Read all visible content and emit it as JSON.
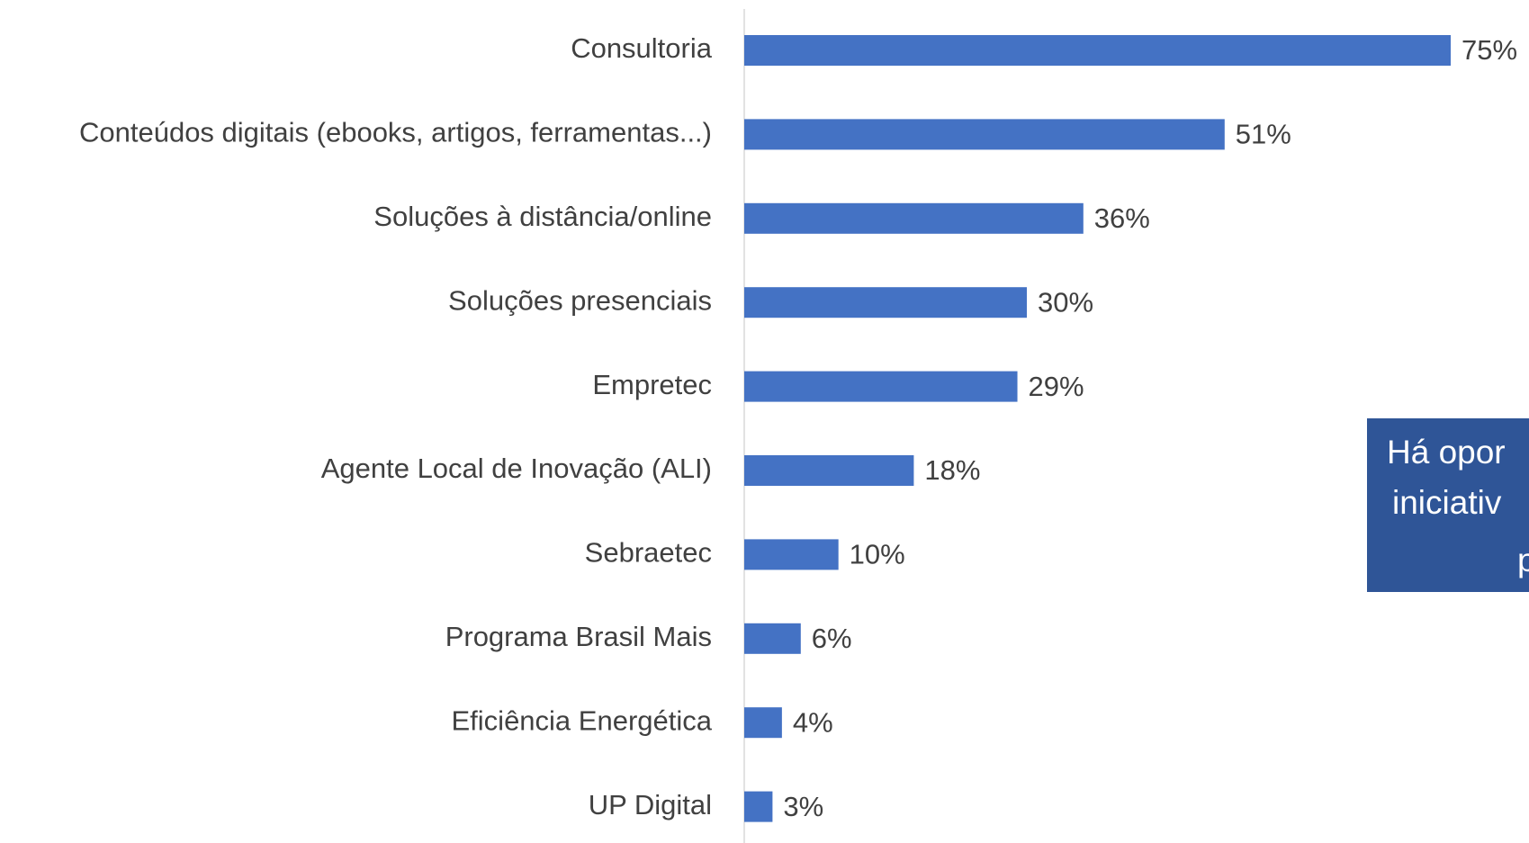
{
  "chart_data": {
    "type": "bar",
    "orientation": "horizontal",
    "categories": [
      "Consultoria",
      "Conteúdos digitais (ebooks, artigos, ferramentas...)",
      "Soluções à distância/online",
      "Soluções presenciais",
      "Empretec",
      "Agente Local de Inovação (ALI)",
      "Sebraetec",
      "Programa Brasil Mais",
      "Eficiência Energética",
      "UP Digital"
    ],
    "values": [
      75,
      51,
      36,
      30,
      29,
      18,
      10,
      6,
      4,
      3
    ],
    "value_labels": [
      "75%",
      "51%",
      "36%",
      "30%",
      "29%",
      "18%",
      "10%",
      "6%",
      "4%",
      "3%"
    ],
    "color": "#4472c4",
    "xlim": [
      0,
      75
    ],
    "annotation": {
      "lines": [
        "Há opor",
        "iniciativ",
        "p"
      ],
      "color": "#2f5597"
    }
  }
}
